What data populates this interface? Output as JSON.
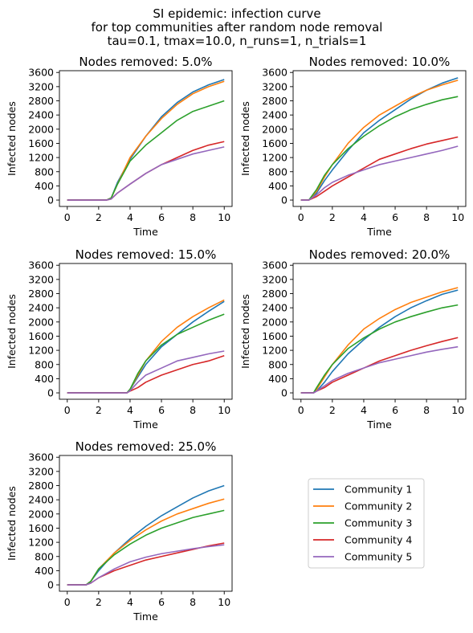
{
  "figure": {
    "title_lines": [
      "SI epidemic: infection curve",
      "for top communities after random node removal",
      "tau=0.1, tmax=10.0, n_runs=1, n_trials=1"
    ]
  },
  "legend": [
    {
      "name": "Community 1",
      "color": "#1f77b4"
    },
    {
      "name": "Community 2",
      "color": "#ff7f0e"
    },
    {
      "name": "Community 3",
      "color": "#2ca02c"
    },
    {
      "name": "Community 4",
      "color": "#d62728"
    },
    {
      "name": "Community 5",
      "color": "#9467bd"
    }
  ],
  "chart_data": [
    {
      "type": "line",
      "title": "Nodes removed: 5.0%",
      "xlabel": "Time",
      "ylabel": "Infected nodes",
      "xlim": [
        -0.5,
        10.5
      ],
      "ylim": [
        -180,
        3650
      ],
      "xticks": [
        0,
        2,
        4,
        6,
        8,
        10
      ],
      "yticks": [
        0,
        400,
        800,
        1200,
        1600,
        2000,
        2400,
        2800,
        3200,
        3600
      ],
      "series": [
        {
          "name": "Community 1",
          "color": "#1f77b4",
          "x": [
            0,
            2.5,
            2.8,
            3.2,
            4,
            5,
            6,
            7,
            8,
            9,
            10
          ],
          "y": [
            0,
            0,
            60,
            500,
            1150,
            1800,
            2350,
            2750,
            3050,
            3250,
            3400
          ]
        },
        {
          "name": "Community 2",
          "color": "#ff7f0e",
          "x": [
            0,
            2.5,
            2.8,
            3.2,
            4,
            5,
            6,
            7,
            8,
            9,
            10
          ],
          "y": [
            0,
            0,
            60,
            450,
            1200,
            1800,
            2300,
            2700,
            3000,
            3200,
            3350
          ]
        },
        {
          "name": "Community 3",
          "color": "#2ca02c",
          "x": [
            0,
            2.5,
            2.8,
            3.2,
            4,
            5,
            6,
            7,
            8,
            9,
            10
          ],
          "y": [
            0,
            0,
            60,
            450,
            1100,
            1550,
            1900,
            2250,
            2500,
            2650,
            2800
          ]
        },
        {
          "name": "Community 4",
          "color": "#d62728",
          "x": [
            0,
            2.5,
            2.8,
            3.2,
            4,
            5,
            6,
            7,
            8,
            9,
            10
          ],
          "y": [
            0,
            0,
            30,
            200,
            450,
            750,
            1000,
            1200,
            1400,
            1550,
            1650
          ]
        },
        {
          "name": "Community 5",
          "color": "#9467bd",
          "x": [
            0,
            2.5,
            2.8,
            3.2,
            4,
            5,
            6,
            7,
            8,
            9,
            10
          ],
          "y": [
            0,
            0,
            30,
            200,
            450,
            750,
            1000,
            1150,
            1300,
            1400,
            1500
          ]
        }
      ]
    },
    {
      "type": "line",
      "title": "Nodes removed: 10.0%",
      "xlabel": "Time",
      "ylabel": "Infected nodes",
      "xlim": [
        -0.5,
        10.5
      ],
      "ylim": [
        -180,
        3650
      ],
      "xticks": [
        0,
        2,
        4,
        6,
        8,
        10
      ],
      "yticks": [
        0,
        400,
        800,
        1200,
        1600,
        2000,
        2400,
        2800,
        3200,
        3600
      ],
      "series": [
        {
          "name": "Community 1",
          "color": "#1f77b4",
          "x": [
            0,
            0.5,
            1,
            1.5,
            2,
            3,
            4,
            5,
            6,
            7,
            8,
            9,
            10
          ],
          "y": [
            0,
            0,
            200,
            550,
            850,
            1400,
            1900,
            2250,
            2550,
            2850,
            3100,
            3300,
            3450
          ]
        },
        {
          "name": "Community 2",
          "color": "#ff7f0e",
          "x": [
            0,
            0.5,
            1,
            1.5,
            2,
            3,
            4,
            5,
            6,
            7,
            8,
            9,
            10
          ],
          "y": [
            0,
            0,
            250,
            650,
            1000,
            1600,
            2050,
            2400,
            2650,
            2900,
            3100,
            3250,
            3380
          ]
        },
        {
          "name": "Community 3",
          "color": "#2ca02c",
          "x": [
            0,
            0.5,
            1,
            1.5,
            2,
            3,
            4,
            5,
            6,
            7,
            8,
            9,
            10
          ],
          "y": [
            0,
            0,
            300,
            700,
            1000,
            1450,
            1800,
            2100,
            2350,
            2550,
            2700,
            2830,
            2920
          ]
        },
        {
          "name": "Community 4",
          "color": "#d62728",
          "x": [
            0,
            0.5,
            1,
            1.5,
            2,
            3,
            4,
            5,
            6,
            7,
            8,
            9,
            10
          ],
          "y": [
            0,
            0,
            100,
            250,
            400,
            650,
            900,
            1150,
            1300,
            1450,
            1580,
            1680,
            1780
          ]
        },
        {
          "name": "Community 5",
          "color": "#9467bd",
          "x": [
            0,
            0.5,
            1,
            1.5,
            2,
            3,
            4,
            5,
            6,
            7,
            8,
            9,
            10
          ],
          "y": [
            0,
            0,
            150,
            350,
            500,
            700,
            850,
            1000,
            1100,
            1200,
            1300,
            1400,
            1520
          ]
        }
      ]
    },
    {
      "type": "line",
      "title": "Nodes removed: 15.0%",
      "xlabel": "Time",
      "ylabel": "Infected nodes",
      "xlim": [
        -0.5,
        10.5
      ],
      "ylim": [
        -180,
        3650
      ],
      "xticks": [
        0,
        2,
        4,
        6,
        8,
        10
      ],
      "yticks": [
        0,
        400,
        800,
        1200,
        1600,
        2000,
        2400,
        2800,
        3200,
        3600
      ],
      "series": [
        {
          "name": "Community 1",
          "color": "#1f77b4",
          "x": [
            0,
            3.8,
            4,
            4.5,
            5,
            6,
            7,
            8,
            9,
            10
          ],
          "y": [
            0,
            0,
            100,
            450,
            800,
            1300,
            1650,
            2000,
            2300,
            2580
          ]
        },
        {
          "name": "Community 2",
          "color": "#ff7f0e",
          "x": [
            0,
            3.8,
            4,
            4.5,
            5,
            6,
            7,
            8,
            9,
            10
          ],
          "y": [
            0,
            0,
            100,
            500,
            900,
            1450,
            1850,
            2150,
            2400,
            2620
          ]
        },
        {
          "name": "Community 3",
          "color": "#2ca02c",
          "x": [
            0,
            3.8,
            4,
            4.5,
            5,
            6,
            7,
            8,
            9,
            10
          ],
          "y": [
            0,
            0,
            100,
            550,
            900,
            1350,
            1650,
            1850,
            2050,
            2220
          ]
        },
        {
          "name": "Community 4",
          "color": "#d62728",
          "x": [
            0,
            3.8,
            4,
            4.5,
            5,
            6,
            7,
            8,
            9,
            10
          ],
          "y": [
            0,
            0,
            50,
            150,
            300,
            500,
            650,
            800,
            900,
            1050
          ]
        },
        {
          "name": "Community 5",
          "color": "#9467bd",
          "x": [
            0,
            3.8,
            4,
            4.5,
            5,
            6,
            7,
            8,
            9,
            10
          ],
          "y": [
            0,
            0,
            60,
            300,
            500,
            700,
            900,
            1000,
            1100,
            1180
          ]
        }
      ]
    },
    {
      "type": "line",
      "title": "Nodes removed: 20.0%",
      "xlabel": "Time",
      "ylabel": "Infected nodes",
      "xlim": [
        -0.5,
        10.5
      ],
      "ylim": [
        -180,
        3650
      ],
      "xticks": [
        0,
        2,
        4,
        6,
        8,
        10
      ],
      "yticks": [
        0,
        400,
        800,
        1200,
        1600,
        2000,
        2400,
        2800,
        3200,
        3600
      ],
      "series": [
        {
          "name": "Community 1",
          "color": "#1f77b4",
          "x": [
            0,
            0.8,
            1,
            1.5,
            2,
            3,
            4,
            5,
            6,
            7,
            8,
            9,
            10
          ],
          "y": [
            0,
            0,
            50,
            300,
            600,
            1100,
            1500,
            1850,
            2150,
            2400,
            2600,
            2780,
            2900
          ]
        },
        {
          "name": "Community 2",
          "color": "#ff7f0e",
          "x": [
            0,
            0.8,
            1,
            1.5,
            2,
            3,
            4,
            5,
            6,
            7,
            8,
            9,
            10
          ],
          "y": [
            0,
            0,
            100,
            450,
            800,
            1350,
            1800,
            2100,
            2350,
            2550,
            2700,
            2850,
            2970
          ]
        },
        {
          "name": "Community 3",
          "color": "#2ca02c",
          "x": [
            0,
            0.8,
            1,
            1.5,
            2,
            3,
            4,
            5,
            6,
            7,
            8,
            9,
            10
          ],
          "y": [
            0,
            0,
            150,
            500,
            800,
            1250,
            1550,
            1800,
            2000,
            2150,
            2280,
            2400,
            2480
          ]
        },
        {
          "name": "Community 4",
          "color": "#d62728",
          "x": [
            0,
            0.8,
            1,
            1.5,
            2,
            3,
            4,
            5,
            6,
            7,
            8,
            9,
            10
          ],
          "y": [
            0,
            0,
            50,
            150,
            300,
            500,
            700,
            900,
            1050,
            1200,
            1330,
            1450,
            1560
          ]
        },
        {
          "name": "Community 5",
          "color": "#9467bd",
          "x": [
            0,
            0.8,
            1,
            1.5,
            2,
            3,
            4,
            5,
            6,
            7,
            8,
            9,
            10
          ],
          "y": [
            0,
            0,
            50,
            200,
            350,
            550,
            700,
            850,
            950,
            1050,
            1150,
            1230,
            1300
          ]
        }
      ]
    },
    {
      "type": "line",
      "title": "Nodes removed: 25.0%",
      "xlabel": "Time",
      "ylabel": "Infected nodes",
      "xlim": [
        -0.5,
        10.5
      ],
      "ylim": [
        -180,
        3650
      ],
      "xticks": [
        0,
        2,
        4,
        6,
        8,
        10
      ],
      "yticks": [
        0,
        400,
        800,
        1200,
        1600,
        2000,
        2400,
        2800,
        3200,
        3600
      ],
      "series": [
        {
          "name": "Community 1",
          "color": "#1f77b4",
          "x": [
            0,
            1.2,
            1.5,
            2,
            3,
            4,
            5,
            6,
            7,
            8,
            9,
            10
          ],
          "y": [
            0,
            0,
            100,
            400,
            900,
            1300,
            1650,
            1950,
            2200,
            2450,
            2650,
            2800
          ]
        },
        {
          "name": "Community 2",
          "color": "#ff7f0e",
          "x": [
            0,
            1.2,
            1.5,
            2,
            3,
            4,
            5,
            6,
            7,
            8,
            9,
            10
          ],
          "y": [
            0,
            0,
            100,
            450,
            900,
            1250,
            1550,
            1800,
            2000,
            2150,
            2300,
            2420
          ]
        },
        {
          "name": "Community 3",
          "color": "#2ca02c",
          "x": [
            0,
            1.2,
            1.5,
            2,
            3,
            4,
            5,
            6,
            7,
            8,
            9,
            10
          ],
          "y": [
            0,
            0,
            100,
            450,
            850,
            1150,
            1400,
            1600,
            1750,
            1900,
            2000,
            2100
          ]
        },
        {
          "name": "Community 4",
          "color": "#d62728",
          "x": [
            0,
            1.2,
            1.5,
            2,
            3,
            4,
            5,
            6,
            7,
            8,
            9,
            10
          ],
          "y": [
            0,
            0,
            50,
            200,
            400,
            550,
            700,
            800,
            900,
            1000,
            1100,
            1180
          ]
        },
        {
          "name": "Community 5",
          "color": "#9467bd",
          "x": [
            0,
            1.2,
            1.5,
            2,
            3,
            4,
            5,
            6,
            7,
            8,
            9,
            10
          ],
          "y": [
            0,
            0,
            50,
            200,
            450,
            650,
            780,
            880,
            950,
            1020,
            1080,
            1130
          ]
        }
      ]
    }
  ]
}
